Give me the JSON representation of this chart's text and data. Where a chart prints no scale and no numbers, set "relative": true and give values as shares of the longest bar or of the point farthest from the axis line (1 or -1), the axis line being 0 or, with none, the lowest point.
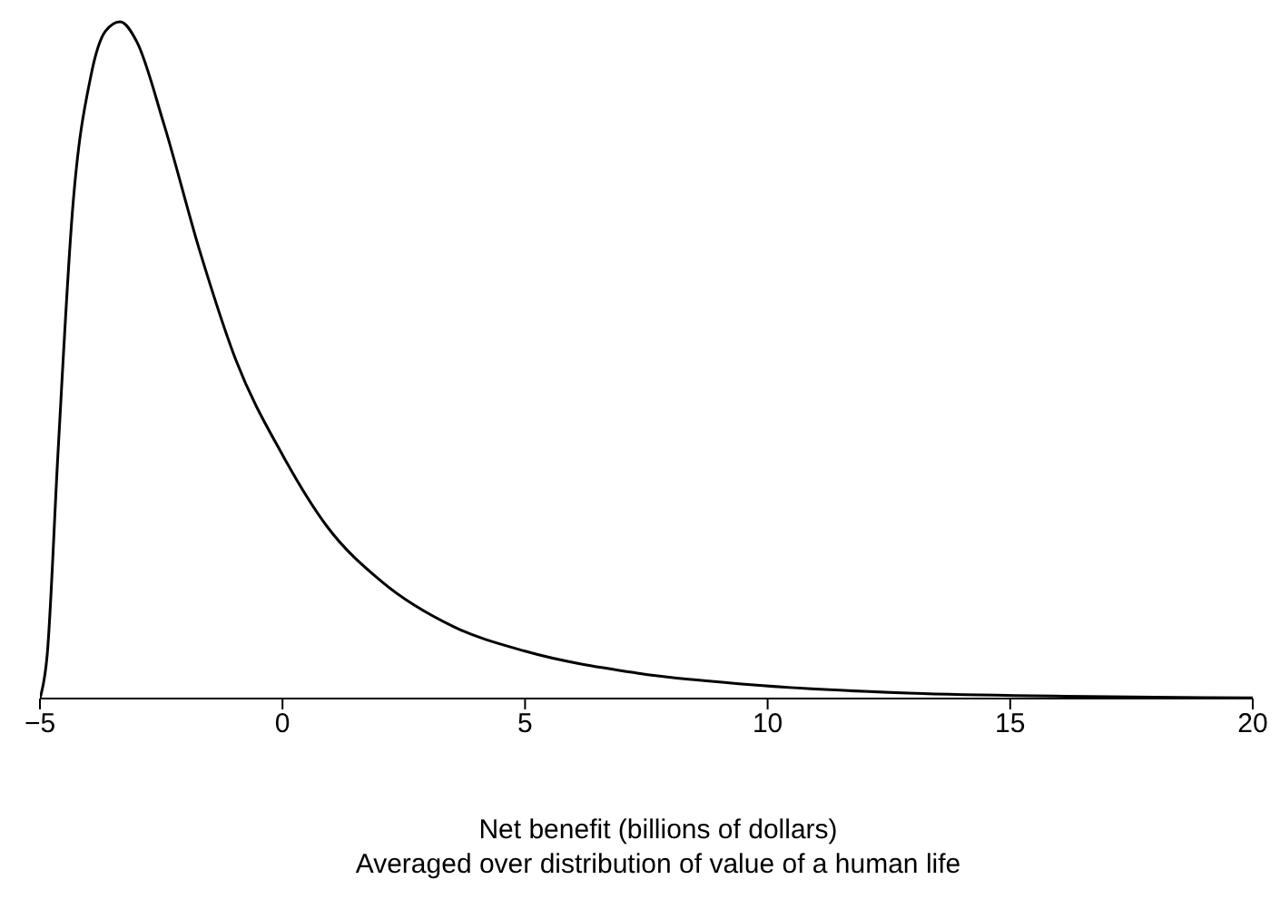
{
  "chart_data": {
    "type": "line",
    "relative": true,
    "xlabel": "Net benefit (billions of dollars)\nAveraged over distribution of value of a human life",
    "xlim": [
      -5,
      20
    ],
    "xticks": [
      -5,
      0,
      5,
      10,
      15,
      20
    ],
    "marker": "none",
    "line_style": "solid",
    "grid": false,
    "legend": false,
    "series": [
      {
        "color": "#000000",
        "x": [
          -5,
          -4.85,
          -4.63,
          -4.33,
          -3.95,
          -3.65,
          -3.35,
          -3.0,
          -2.45,
          -1.7,
          -0.96,
          0,
          0.91,
          2.04,
          3.53,
          5,
          7.28,
          9.9,
          12.9,
          16.6,
          20
        ],
        "values": [
          0,
          0.065,
          0.36,
          0.72,
          0.92,
          0.986,
          1,
          0.97,
          0.85,
          0.66,
          0.5,
          0.36,
          0.255,
          0.173,
          0.106,
          0.07,
          0.038,
          0.019,
          0.008,
          0.003,
          0.001
        ]
      }
    ]
  }
}
